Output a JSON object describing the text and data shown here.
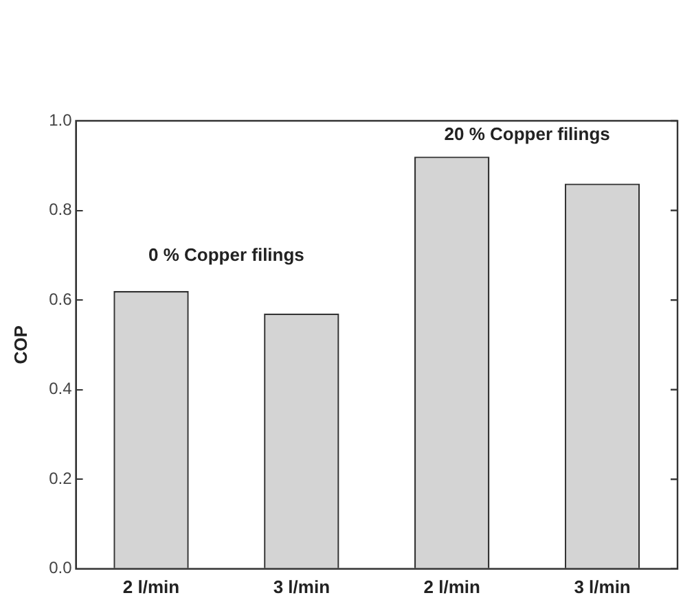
{
  "chart_data": {
    "type": "bar",
    "ylabel": "COP",
    "categories": [
      "2 l/min",
      "3 l/min",
      "2 l/min",
      "3 l/min"
    ],
    "values": [
      0.62,
      0.57,
      0.92,
      0.86
    ],
    "color": "#d4d4d4",
    "ylim": [
      0,
      1
    ],
    "yticks": [
      {
        "value": 0,
        "label": "0.0"
      },
      {
        "value": 0.2,
        "label": "0.2"
      },
      {
        "value": 0.4,
        "label": "0.4"
      },
      {
        "value": 0.6,
        "label": "0.6"
      },
      {
        "value": 0.8,
        "label": "0.8"
      },
      {
        "value": 1,
        "label": "1.0"
      }
    ],
    "annotations": [
      "0 % Copper filings",
      "20 % Copper filings"
    ],
    "grid": false,
    "legend": false
  }
}
